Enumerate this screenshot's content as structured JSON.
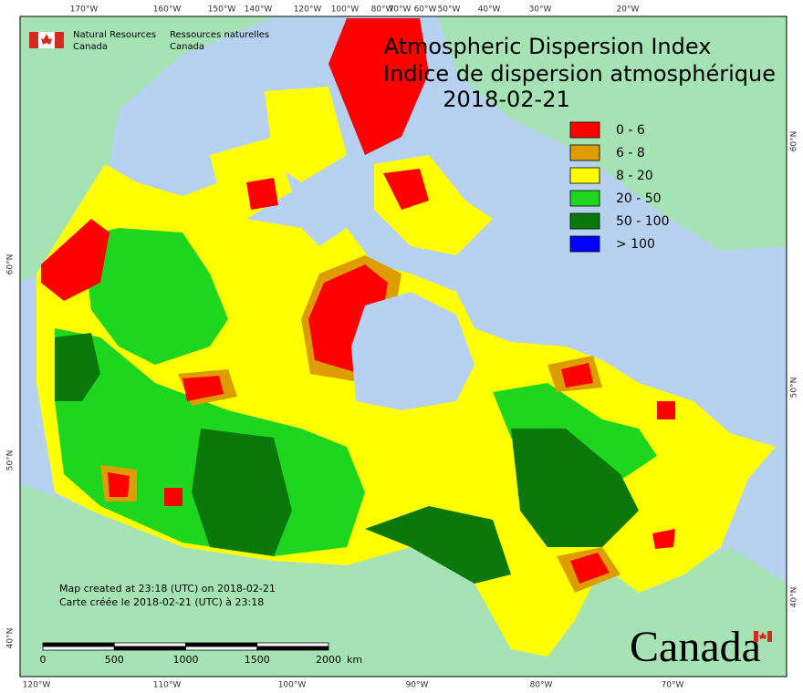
{
  "header": {
    "agency_en": "Natural Resources",
    "agency_en_2": "Canada",
    "agency_fr": "Ressources naturelles",
    "agency_fr_2": "Canada"
  },
  "title": {
    "en": "Atmospheric Dispersion Index",
    "fr": "Indice de dispersion atmosphérique",
    "date": "2018-02-21"
  },
  "legend": [
    {
      "label": "0 - 6",
      "color": "#ff0000"
    },
    {
      "label": "6 - 8",
      "color": "#dd9d00"
    },
    {
      "label": "8 - 20",
      "color": "#ffff00"
    },
    {
      "label": "20 - 50",
      "color": "#1fd61f"
    },
    {
      "label": "50 - 100",
      "color": "#0a780a"
    },
    {
      "label": "> 100",
      "color": "#0000ff"
    }
  ],
  "credits": [
    "Map created at 23:18 (UTC) on 2018-02-21",
    "Carte créée le 2018-02-21 (UTC) à 23:18"
  ],
  "scale_bar": {
    "labels": [
      "0",
      "500",
      "1000",
      "1500",
      "2000"
    ],
    "unit": "km"
  },
  "graticule": {
    "top": [
      "170°W",
      "160°W",
      "150°W",
      "140°W",
      "120°W",
      "100°W",
      "80°W",
      "70°W",
      "60°W",
      "50°W",
      "40°W",
      "30°W",
      "20°W"
    ],
    "bottom": [
      "120°W",
      "110°W",
      "100°W",
      "90°W",
      "80°W",
      "70°W"
    ],
    "left": [
      "60°N",
      "50°N",
      "40°N"
    ],
    "right": [
      "60°N",
      "50°N",
      "40°N"
    ]
  },
  "wordmark": "Canada"
}
